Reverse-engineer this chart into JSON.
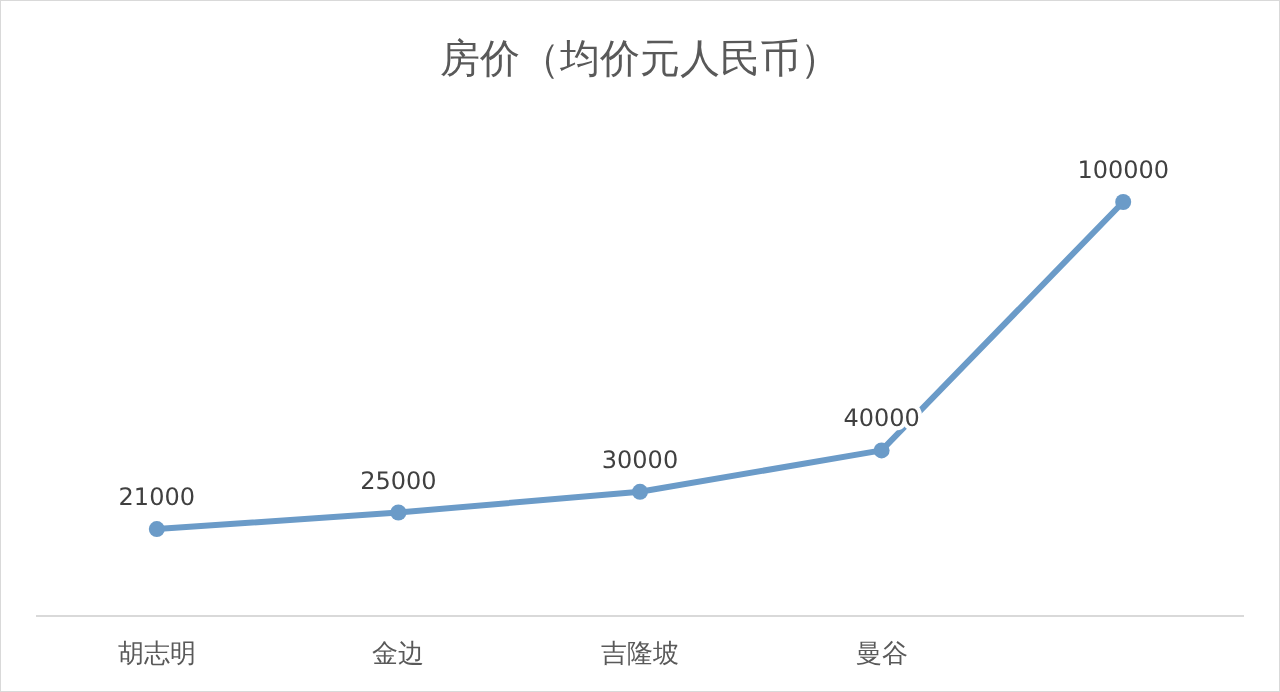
{
  "chart_data": {
    "type": "line",
    "title": "房价（均价元人民币）",
    "categories": [
      "胡志明",
      "金边",
      "吉隆坡",
      "曼谷",
      null
    ],
    "series": [
      {
        "color": "#6b9bc8",
        "values": [
          21000,
          25000,
          30000,
          40000,
          100000
        ]
      }
    ],
    "data_labels": true,
    "marker": "circle",
    "line_style": "solid"
  }
}
